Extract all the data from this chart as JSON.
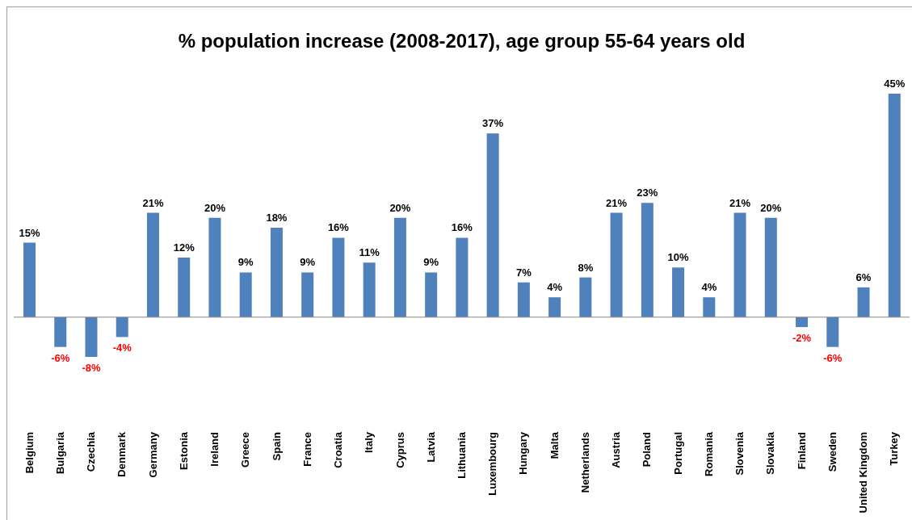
{
  "chart_data": {
    "type": "bar",
    "title": "% population increase (2008-2017), age group 55-64 years old",
    "categories": [
      "Belgium",
      "Bulgaria",
      "Czechia",
      "Denmark",
      "Germany",
      "Estonia",
      "Ireland",
      "Greece",
      "Spain",
      "France",
      "Croatia",
      "Italy",
      "Cyprus",
      "Latvia",
      "Lithuania",
      "Luxembourg",
      "Hungary",
      "Malta",
      "Netherlands",
      "Austria",
      "Poland",
      "Portugal",
      "Romania",
      "Slovenia",
      "Slovakia",
      "Finland",
      "Sweden",
      "United Kingdom",
      "Turkey"
    ],
    "values": [
      15,
      -6,
      -8,
      -4,
      21,
      12,
      20,
      9,
      18,
      9,
      16,
      11,
      20,
      9,
      16,
      37,
      7,
      4,
      8,
      21,
      23,
      10,
      4,
      21,
      20,
      -2,
      -6,
      6,
      45
    ],
    "value_labels": [
      "15%",
      "-6%",
      "-8%",
      "-4%",
      "21%",
      "12%",
      "20%",
      "9%",
      "18%",
      "9%",
      "16%",
      "11%",
      "20%",
      "9%",
      "16%",
      "37%",
      "7%",
      "4%",
      "8%",
      "21%",
      "23%",
      "10%",
      "4%",
      "21%",
      "20%",
      "-2%",
      "-6%",
      "6%",
      "45%"
    ],
    "color": "#4f81bd",
    "tick_labels": "x"
  }
}
